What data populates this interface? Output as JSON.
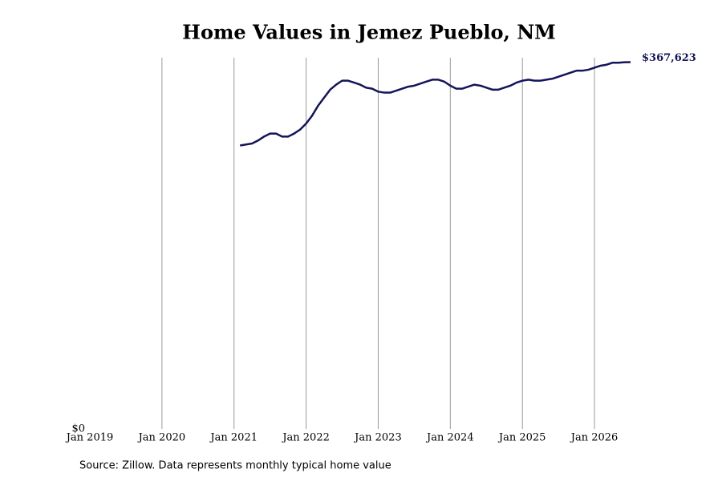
{
  "chart_data": {
    "type": "line",
    "title": "Home Values in Jemez Pueblo, NM",
    "source": "Source: Zillow. Data represents monthly typical home value",
    "x": [
      "2021-02",
      "2021-03",
      "2021-04",
      "2021-05",
      "2021-06",
      "2021-07",
      "2021-08",
      "2021-09",
      "2021-10",
      "2021-11",
      "2021-12",
      "2022-01",
      "2022-02",
      "2022-03",
      "2022-04",
      "2022-05",
      "2022-06",
      "2022-07",
      "2022-08",
      "2022-09",
      "2022-10",
      "2022-11",
      "2022-12",
      "2023-01",
      "2023-02",
      "2023-03",
      "2023-04",
      "2023-05",
      "2023-06",
      "2023-07",
      "2023-08",
      "2023-09",
      "2023-10",
      "2023-11",
      "2023-12",
      "2024-01",
      "2024-02",
      "2024-03",
      "2024-04",
      "2024-05",
      "2024-06",
      "2024-07",
      "2024-08",
      "2024-09",
      "2024-10",
      "2024-11",
      "2024-12",
      "2025-01",
      "2025-02",
      "2025-03",
      "2025-04",
      "2025-05",
      "2025-06",
      "2025-07",
      "2025-08",
      "2025-09",
      "2025-10",
      "2025-11",
      "2025-12",
      "2026-01",
      "2026-02",
      "2026-03",
      "2026-04",
      "2026-05",
      "2026-06",
      "2026-07"
    ],
    "series": [
      {
        "color": "#14145a",
        "values": [
          284000,
          285000,
          286000,
          289000,
          293000,
          296000,
          296000,
          293000,
          293000,
          296000,
          300000,
          306000,
          314000,
          324000,
          332000,
          340000,
          345000,
          349000,
          349000,
          347000,
          345000,
          342000,
          341000,
          338000,
          337000,
          337000,
          339000,
          341000,
          343000,
          344000,
          346000,
          348000,
          350000,
          350000,
          348000,
          344000,
          341000,
          341000,
          343000,
          345000,
          344000,
          342000,
          340000,
          340000,
          342000,
          344000,
          347000,
          349000,
          350000,
          349000,
          349000,
          350000,
          351000,
          353000,
          355000,
          357000,
          359000,
          359000,
          360000,
          362000,
          364000,
          365000,
          367000,
          367000,
          367500,
          367623
        ],
        "value_labels": [
          null,
          null,
          null,
          null,
          null,
          null,
          null,
          null,
          null,
          null,
          null,
          null,
          null,
          null,
          null,
          null,
          null,
          null,
          null,
          null,
          null,
          null,
          null,
          null,
          null,
          null,
          null,
          null,
          null,
          null,
          null,
          null,
          null,
          null,
          null,
          null,
          null,
          null,
          null,
          null,
          null,
          null,
          null,
          null,
          null,
          null,
          null,
          null,
          null,
          null,
          null,
          null,
          null,
          null,
          null,
          null,
          null,
          null,
          null,
          null,
          null,
          null,
          null,
          null,
          null,
          "$367,623"
        ]
      }
    ],
    "xlim": [
      "2019-01",
      "2026-07"
    ],
    "xticks": [
      {
        "value": "2019-01",
        "label": "Jan 2019"
      },
      {
        "value": "2020-01",
        "label": "Jan 2020"
      },
      {
        "value": "2021-01",
        "label": "Jan 2021"
      },
      {
        "value": "2022-01",
        "label": "Jan 2022"
      },
      {
        "value": "2023-01",
        "label": "Jan 2023"
      },
      {
        "value": "2024-01",
        "label": "Jan 2024"
      },
      {
        "value": "2025-01",
        "label": "Jan 2025"
      },
      {
        "value": "2026-01",
        "label": "Jan 2026"
      }
    ],
    "ylim": [
      0,
      372000
    ],
    "yticks": [
      {
        "value": 0,
        "label": "$0"
      }
    ],
    "grid": true
  }
}
